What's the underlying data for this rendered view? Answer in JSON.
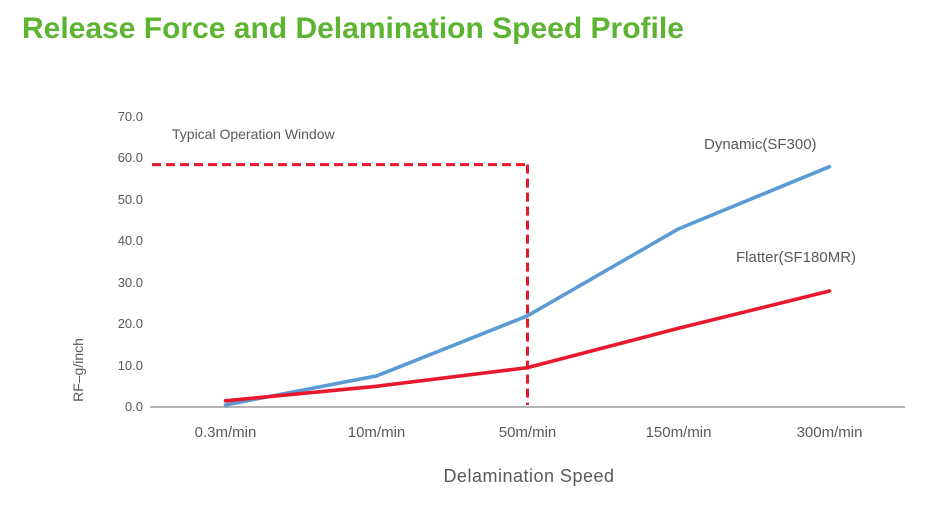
{
  "page_title": "Release Force and Delamination Speed Profile",
  "colors": {
    "title_green": "#5CB431",
    "series_blue": "#5B9BD5",
    "series_red": "#E8192D",
    "text_gray": "#595959",
    "axis_gray": "#9B9B9B"
  },
  "chart_data": {
    "type": "line",
    "title": "Release Force and Delamination Speed Profile",
    "xlabel": "Delamination Speed",
    "ylabel": "RF–g/inch",
    "categories": [
      "0.3m/min",
      "10m/min",
      "50m/min",
      "150m/min",
      "300m/min"
    ],
    "series": [
      {
        "name": "Dynamic(SF300)",
        "color": "#5B9BD5",
        "values": [
          0.5,
          7.5,
          22,
          43,
          58
        ]
      },
      {
        "name": "Flatter(SF180MR)",
        "color": "#E8192D",
        "values": [
          1.5,
          5,
          9.5,
          19,
          28
        ]
      }
    ],
    "ylim": [
      0,
      70
    ],
    "ytick_step": 10,
    "yticks": [
      "70.0",
      "60.0",
      "50.0",
      "40.0",
      "30.0",
      "20.0",
      "10.0",
      "0.0"
    ],
    "grid": false,
    "legend_position": "inline-end-of-line-labels",
    "annotation": {
      "label": "Typical Operation Window",
      "y_value": 58.5,
      "x_category": "50m/min",
      "style": "dashed",
      "color": "#E8192D"
    }
  }
}
